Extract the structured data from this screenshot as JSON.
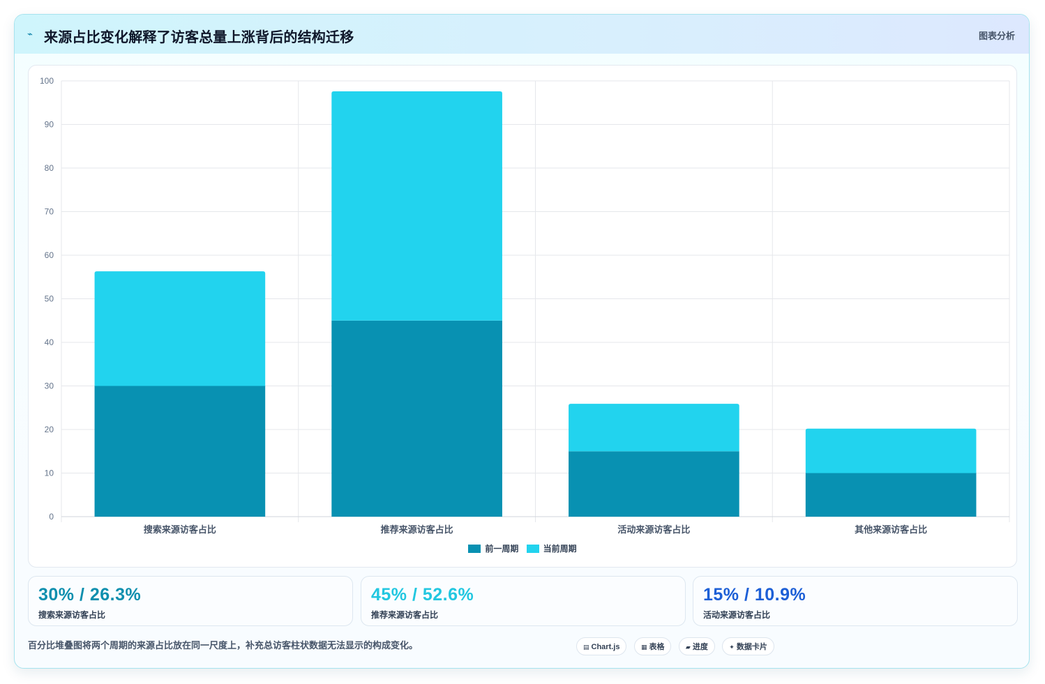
{
  "header": {
    "icon": "sparkline-icon",
    "title": "来源占比变化解释了访客总量上涨背后的结构迁移",
    "tag": "图表分析"
  },
  "chart_data": {
    "type": "bar",
    "stacked": true,
    "categories": [
      "搜索来源访客占比",
      "推荐来源访客占比",
      "活动来源访客占比",
      "其他来源访客占比"
    ],
    "series": [
      {
        "name": "前一周期",
        "values": [
          30,
          45,
          15,
          10
        ],
        "color": "#0891b2"
      },
      {
        "name": "当前周期",
        "values": [
          26.3,
          52.6,
          10.9,
          10.2
        ],
        "color": "#22d3ee"
      }
    ],
    "ylim": [
      0,
      100
    ],
    "yticks": [
      0,
      10,
      20,
      30,
      40,
      50,
      60,
      70,
      80,
      90,
      100
    ],
    "grid": true,
    "legend_position": "bottom"
  },
  "stats": [
    {
      "value": "30% / 26.3%",
      "label": "搜索来源访客占比",
      "color": "#0e8fae"
    },
    {
      "value": "45% / 52.6%",
      "label": "推荐来源访客占比",
      "color": "#22c7e0"
    },
    {
      "value": "15% / 10.9%",
      "label": "活动来源访客占比",
      "color": "#1d5fd6"
    }
  ],
  "footnote": "百分比堆叠图将两个周期的来源占比放在同一尺度上，补充总访客柱状数据无法显示的构成变化。",
  "chips": [
    {
      "icon": "chart-icon",
      "glyph": "▤",
      "label": "Chart.js"
    },
    {
      "icon": "table-icon",
      "glyph": "▦",
      "label": "表格"
    },
    {
      "icon": "progress-icon",
      "glyph": "▰",
      "label": "进度"
    },
    {
      "icon": "sparkle-icon",
      "glyph": "✦",
      "label": "数据卡片"
    }
  ]
}
